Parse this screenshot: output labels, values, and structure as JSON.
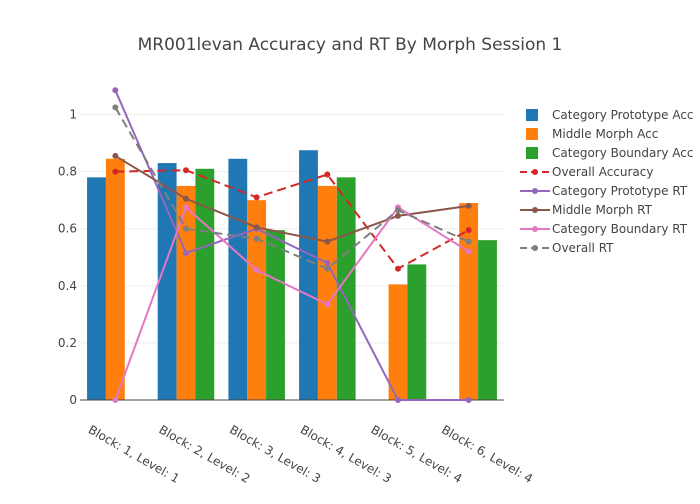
{
  "chart_data": {
    "type": "bar",
    "title": "MR001levan Accuracy and RT By Morph Session 1",
    "xlabel": "",
    "ylabel": "",
    "categories": [
      "Block: 1, Level: 1",
      "Block: 2, Level: 2",
      "Block: 3, Level: 3",
      "Block: 4, Level: 3",
      "Block: 5, Level: 4",
      "Block: 6, Level: 4"
    ],
    "ylim": [
      0,
      1.1
    ],
    "yticks": [
      0,
      0.2,
      0.4,
      0.6,
      0.8,
      1
    ],
    "yticklabels": [
      "0",
      "0.2",
      "0.4",
      "0.6",
      "0.8",
      "1"
    ],
    "grid": true,
    "legend_position": "right",
    "bar_series": [
      {
        "name": "Category Prototype Acc",
        "color": "#1f77b4",
        "values": [
          0.78,
          0.83,
          0.845,
          0.875,
          null,
          null
        ]
      },
      {
        "name": "Middle Morph Acc",
        "color": "#ff7f0e",
        "values": [
          0.845,
          0.75,
          0.7,
          0.75,
          0.405,
          0.69
        ]
      },
      {
        "name": "Category Boundary Acc",
        "color": "#2ca02c",
        "values": [
          null,
          0.81,
          0.595,
          0.78,
          0.475,
          0.56
        ]
      }
    ],
    "line_series": [
      {
        "name": "Overall Accuracy",
        "color": "#d62728",
        "dash": "dash",
        "values": [
          0.8,
          0.805,
          0.71,
          0.79,
          0.46,
          0.595
        ]
      },
      {
        "name": "Category Prototype RT",
        "color": "#9467bd",
        "dash": "solid",
        "values": [
          1.085,
          0.515,
          0.6,
          0.48,
          0.0,
          0.0
        ]
      },
      {
        "name": "Middle Morph RT",
        "color": "#8c564b",
        "dash": "solid",
        "values": [
          0.855,
          0.705,
          0.605,
          0.555,
          0.645,
          0.68
        ]
      },
      {
        "name": "Category Boundary RT",
        "color": "#e377c2",
        "dash": "solid",
        "values": [
          0.0,
          0.675,
          0.455,
          0.335,
          0.675,
          0.52
        ]
      },
      {
        "name": "Overall RT",
        "color": "#7f7f7f",
        "dash": "dash",
        "values": [
          1.025,
          0.6,
          0.565,
          0.46,
          0.665,
          0.555
        ]
      }
    ]
  }
}
